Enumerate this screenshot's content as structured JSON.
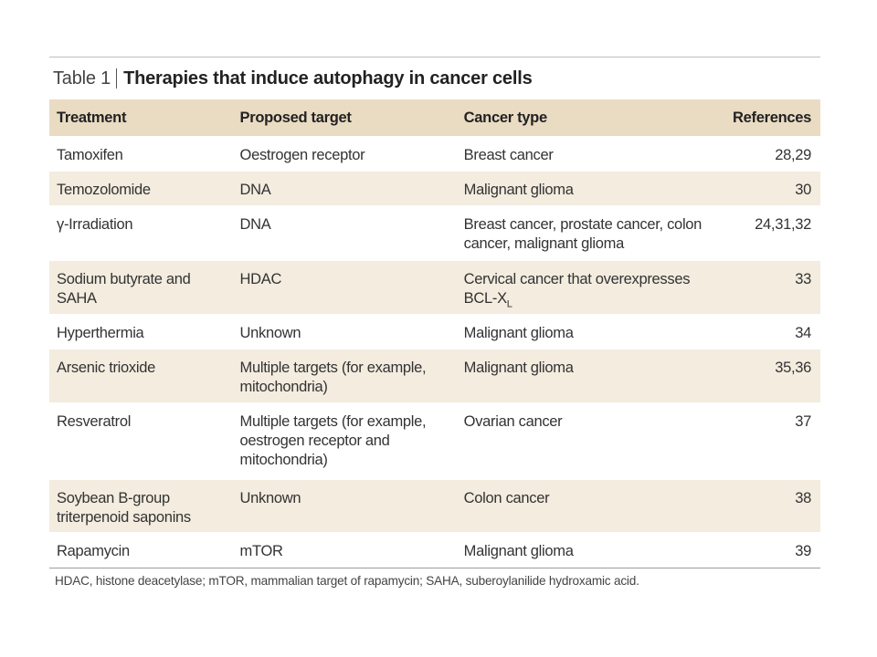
{
  "table": {
    "label": "Table 1",
    "caption": "Therapies that induce autophagy in cancer cells",
    "headers": [
      "Treatment",
      "Proposed target",
      "Cancer type",
      "References"
    ],
    "rows": [
      {
        "treatment": "Tamoxifen",
        "target": "Oestrogen receptor",
        "cancer": "Breast cancer",
        "refs": "28,29"
      },
      {
        "treatment": "Temozolomide",
        "target": "DNA",
        "cancer": "Malignant glioma",
        "refs": "30"
      },
      {
        "treatment": "γ-Irradiation",
        "target": "DNA",
        "cancer": "Breast cancer, prostate cancer, colon cancer, malignant glioma",
        "refs": "24,31,32"
      },
      {
        "treatment": "Sodium butyrate and SAHA",
        "target": "HDAC",
        "cancer": "Cervical cancer that overexpresses BCL-X",
        "cancer_sub": "L",
        "refs": "33"
      },
      {
        "treatment": "Hyperthermia",
        "target": "Unknown",
        "cancer": "Malignant glioma",
        "refs": "34"
      },
      {
        "treatment": "Arsenic trioxide",
        "target": "Multiple targets (for example, mitochondria)",
        "cancer": "Malignant glioma",
        "refs": "35,36"
      },
      {
        "treatment": "Resveratrol",
        "target": "Multiple targets (for example, oestrogen receptor and mitochondria)",
        "cancer": "Ovarian cancer",
        "refs": "37"
      },
      {
        "treatment": "Soybean B-group triterpenoid saponins",
        "target": "Unknown",
        "cancer": "Colon cancer",
        "refs": "38"
      },
      {
        "treatment": "Rapamycin",
        "target": "mTOR",
        "cancer": "Malignant glioma",
        "refs": "39"
      }
    ],
    "footnote": "HDAC, histone deacetylase; mTOR, mammalian target of rapamycin; SAHA, suberoylanilide hydroxamic acid."
  },
  "colors": {
    "header_band": "#eadbc3",
    "row_band": "#f3ecdf"
  }
}
